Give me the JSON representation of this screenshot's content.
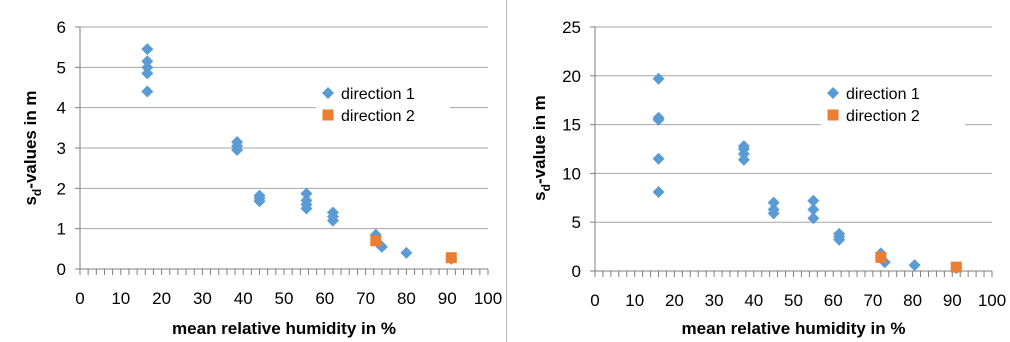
{
  "chart_data": [
    {
      "type": "scatter",
      "title": "",
      "xlabel": "mean relative humidity in %",
      "ylabel_main": "s",
      "ylabel_sub": "d",
      "ylabel_rest": "-values in m",
      "xlim": [
        0,
        100
      ],
      "ylim": [
        0,
        6
      ],
      "xticks": [
        "0",
        "10",
        "20",
        "30",
        "40",
        "50",
        "60",
        "70",
        "80",
        "90",
        "100"
      ],
      "yticks": [
        "0",
        "1",
        "2",
        "3",
        "4",
        "5",
        "6"
      ],
      "grid": "horizontal",
      "legend": "right",
      "series": [
        {
          "name": "direction 1",
          "marker": "diamond",
          "color": "#5b9bd5",
          "points": [
            [
              16.5,
              5.45
            ],
            [
              16.5,
              5.15
            ],
            [
              16.5,
              5.0
            ],
            [
              16.5,
              4.85
            ],
            [
              16.5,
              4.4
            ],
            [
              38.5,
              3.15
            ],
            [
              38.5,
              3.05
            ],
            [
              38.5,
              2.95
            ],
            [
              44,
              1.82
            ],
            [
              44,
              1.75
            ],
            [
              44,
              1.68
            ],
            [
              55.5,
              1.87
            ],
            [
              55.5,
              1.7
            ],
            [
              55.5,
              1.6
            ],
            [
              55.5,
              1.5
            ],
            [
              62,
              1.4
            ],
            [
              62,
              1.3
            ],
            [
              62,
              1.2
            ],
            [
              72.5,
              0.85
            ],
            [
              73.5,
              0.6
            ],
            [
              74,
              0.55
            ],
            [
              80,
              0.4
            ],
            [
              91,
              0.25
            ]
          ]
        },
        {
          "name": "direction 2",
          "marker": "square",
          "color": "#ed7d31",
          "points": [
            [
              72.5,
              0.7
            ],
            [
              91,
              0.28
            ]
          ]
        }
      ]
    },
    {
      "type": "scatter",
      "title": "",
      "xlabel": "mean relative humidity in %",
      "ylabel_main": "s",
      "ylabel_sub": "d",
      "ylabel_rest": "-value in m",
      "xlim": [
        0,
        100
      ],
      "ylim": [
        0,
        25
      ],
      "xticks": [
        "0",
        "10",
        "20",
        "30",
        "40",
        "50",
        "60",
        "70",
        "80",
        "90",
        "100"
      ],
      "yticks": [
        "0",
        "5",
        "10",
        "15",
        "20",
        "25"
      ],
      "grid": "horizontal",
      "legend": "right",
      "series": [
        {
          "name": "direction 1",
          "marker": "diamond",
          "color": "#5b9bd5",
          "points": [
            [
              16,
              19.7
            ],
            [
              16,
              15.7
            ],
            [
              16,
              15.5
            ],
            [
              16,
              11.5
            ],
            [
              16,
              8.1
            ],
            [
              37.5,
              12.8
            ],
            [
              37.5,
              12.5
            ],
            [
              37.5,
              12.0
            ],
            [
              37.5,
              11.4
            ],
            [
              45,
              7.0
            ],
            [
              45,
              6.3
            ],
            [
              45,
              5.9
            ],
            [
              55,
              7.2
            ],
            [
              55,
              6.3
            ],
            [
              55,
              5.4
            ],
            [
              61.5,
              3.8
            ],
            [
              61.5,
              3.5
            ],
            [
              61.5,
              3.2
            ],
            [
              72,
              1.8
            ],
            [
              73,
              0.9
            ],
            [
              80.5,
              0.6
            ],
            [
              91,
              0.3
            ]
          ]
        },
        {
          "name": "direction 2",
          "marker": "square",
          "color": "#ed7d31",
          "points": [
            [
              72,
              1.4
            ],
            [
              91,
              0.4
            ]
          ]
        }
      ]
    }
  ]
}
